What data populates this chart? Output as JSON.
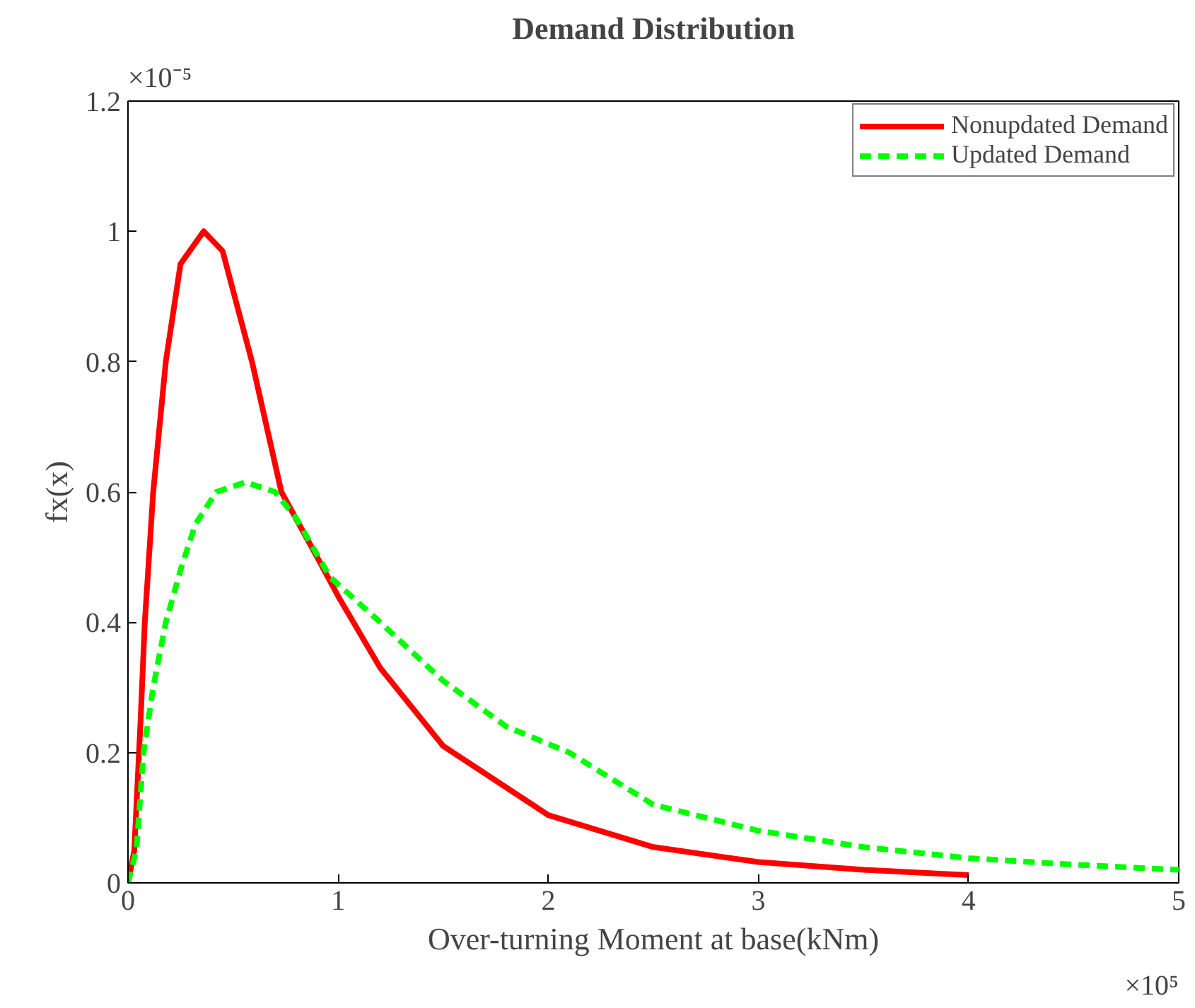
{
  "chart_data": {
    "type": "line",
    "title": "Demand Distribution",
    "xlabel": "Over-turning Moment at base(kNm)",
    "ylabel": "fx(x)",
    "annotations": [
      "×10⁵",
      "×10⁻⁵"
    ],
    "xlim": [
      0,
      5
    ],
    "ylim": [
      0,
      1.2
    ],
    "xticks": [
      0,
      1,
      2,
      3,
      4,
      5
    ],
    "yticks": [
      0,
      0.2,
      0.4,
      0.6,
      0.8,
      1,
      1.2
    ],
    "grid": false,
    "legend": "top right",
    "marker": "none",
    "series": [
      {
        "name": "Nonupdated Demand",
        "color": "#ff0000",
        "line_style": "solid",
        "x": [
          0,
          0.03,
          0.06,
          0.08,
          0.12,
          0.18,
          0.25,
          0.36,
          0.45,
          0.59,
          0.73,
          0.9,
          1.0,
          1.2,
          1.5,
          2,
          2.5,
          3,
          3.5,
          4
        ],
        "values": [
          0,
          0.05,
          0.25,
          0.4,
          0.6,
          0.8,
          0.95,
          1.0,
          0.97,
          0.8,
          0.6,
          0.5,
          0.44,
          0.33,
          0.21,
          0.104,
          0.055,
          0.032,
          0.02,
          0.012
        ]
      },
      {
        "name": "Updated Demand",
        "color": "#00ff00",
        "line_style": "dashed",
        "x": [
          0,
          0.04,
          0.074,
          0.12,
          0.18,
          0.25,
          0.32,
          0.42,
          0.56,
          0.7,
          0.8,
          0.96,
          1.2,
          1.5,
          1.8,
          2.1,
          2.5,
          3,
          3.5,
          4,
          4.5,
          5
        ],
        "values": [
          0,
          0.05,
          0.2,
          0.3,
          0.4,
          0.48,
          0.55,
          0.6,
          0.615,
          0.6,
          0.56,
          0.47,
          0.4,
          0.31,
          0.24,
          0.2,
          0.12,
          0.08,
          0.055,
          0.038,
          0.028,
          0.02
        ]
      }
    ]
  }
}
